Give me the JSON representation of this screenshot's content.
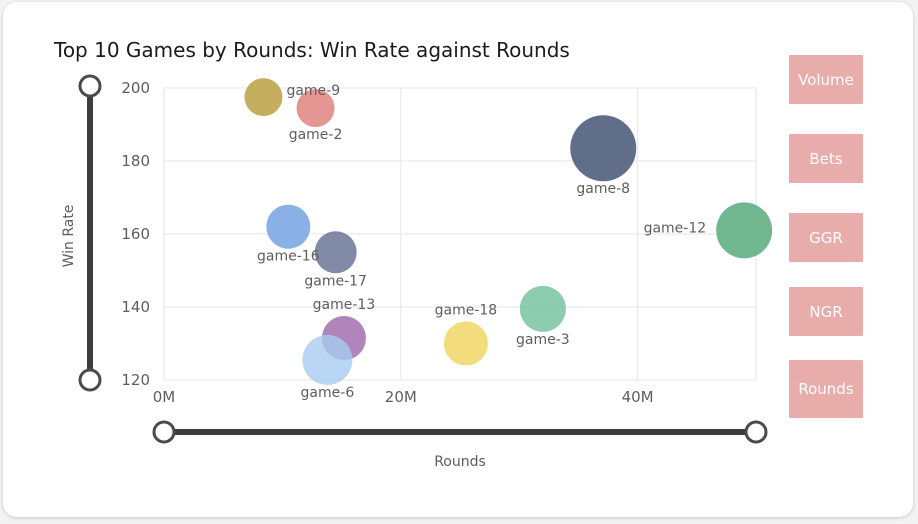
{
  "chart_data": {
    "type": "scatter",
    "title": "Top 10 Games by Rounds: Win Rate against Rounds",
    "xlabel": "Rounds",
    "ylabel": "Win Rate",
    "xlim": [
      0,
      50000000
    ],
    "ylim": [
      120,
      200
    ],
    "x_ticks": [
      {
        "value": 0,
        "label": "0M"
      },
      {
        "value": 20000000,
        "label": "20M"
      },
      {
        "value": 40000000,
        "label": "40M"
      }
    ],
    "y_ticks": [
      {
        "value": 120,
        "label": "120"
      },
      {
        "value": 140,
        "label": "140"
      },
      {
        "value": 160,
        "label": "160"
      },
      {
        "value": 180,
        "label": "180"
      },
      {
        "value": 200,
        "label": "200"
      }
    ],
    "grid": true,
    "points": [
      {
        "label": "game-9",
        "x": 8400000,
        "y": 197.5,
        "color": "#b69a36",
        "label_pos": "right"
      },
      {
        "label": "game-2",
        "x": 12800000,
        "y": 194.5,
        "color": "#de7c78",
        "label_pos": "below"
      },
      {
        "label": "game-8",
        "x": 37100000,
        "y": 183.5,
        "color": "#3a4a6b",
        "label_pos": "below"
      },
      {
        "label": "game-16",
        "x": 10500000,
        "y": 162,
        "color": "#6d9de0",
        "label_pos": "below"
      },
      {
        "label": "game-17",
        "x": 14500000,
        "y": 155,
        "color": "#626d90",
        "label_pos": "below"
      },
      {
        "label": "game-12",
        "x": 49000000,
        "y": 161,
        "color": "#4ea676",
        "label_pos": "left"
      },
      {
        "label": "game-18",
        "x": 25500000,
        "y": 130,
        "color": "#f0d35a",
        "label_pos": "above"
      },
      {
        "label": "game-3",
        "x": 32000000,
        "y": 139.5,
        "color": "#6ec19a",
        "label_pos": "below"
      },
      {
        "label": "game-13",
        "x": 15200000,
        "y": 131.5,
        "color": "#9d66aa",
        "label_pos": "above"
      },
      {
        "label": "game-6",
        "x": 13800000,
        "y": 125.5,
        "color": "#a8ccf2",
        "label_pos": "below"
      }
    ]
  },
  "measure_buttons": [
    "Volume",
    "Bets",
    "GGR",
    "NGR",
    "Rounds"
  ],
  "colors": {
    "button_bg": "#e8acab",
    "slider": "#3c3c3c",
    "grid": "#e6e6e6",
    "tick_text": "#605e5c"
  }
}
